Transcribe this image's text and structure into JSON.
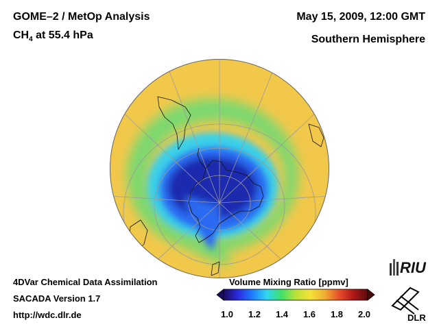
{
  "header": {
    "left_line1": "GOME–2 / MetOp Analysis",
    "species": "CH",
    "species_sub": "4",
    "level": " at 55.4 hPa",
    "date": "May 15, 2009, 12:00 GMT",
    "hemisphere": "Southern Hemisphere"
  },
  "footer": {
    "line1": "4DVar Chemical Data Assimilation",
    "line2": "SACADA Version 1.7",
    "line3": "http://wdc.dlr.de"
  },
  "colorbar": {
    "title": "Volume Mixing Ratio [ppmv]",
    "ticks": [
      "1.0",
      "1.2",
      "1.4",
      "1.6",
      "1.8",
      "2.0"
    ],
    "min": 1.0,
    "max": 2.0,
    "colors": [
      "#1a0c5c",
      "#2a2be0",
      "#1f7dff",
      "#30d6f0",
      "#3ee06a",
      "#b8e23a",
      "#f5e23a",
      "#f0b030",
      "#e8502a",
      "#b01818",
      "#5a0c0c"
    ]
  },
  "map": {
    "projection": "orthographic",
    "center": "South Pole",
    "field_colors": {
      "background": "#f2c84a",
      "green_ring": "#7cd870",
      "cyan_band": "#3ad0e8",
      "blue_core": "#2a6bf2",
      "deep_core": "#1a2ab0"
    }
  },
  "logos": {
    "riu": "RIU",
    "dlr": "DLR"
  }
}
